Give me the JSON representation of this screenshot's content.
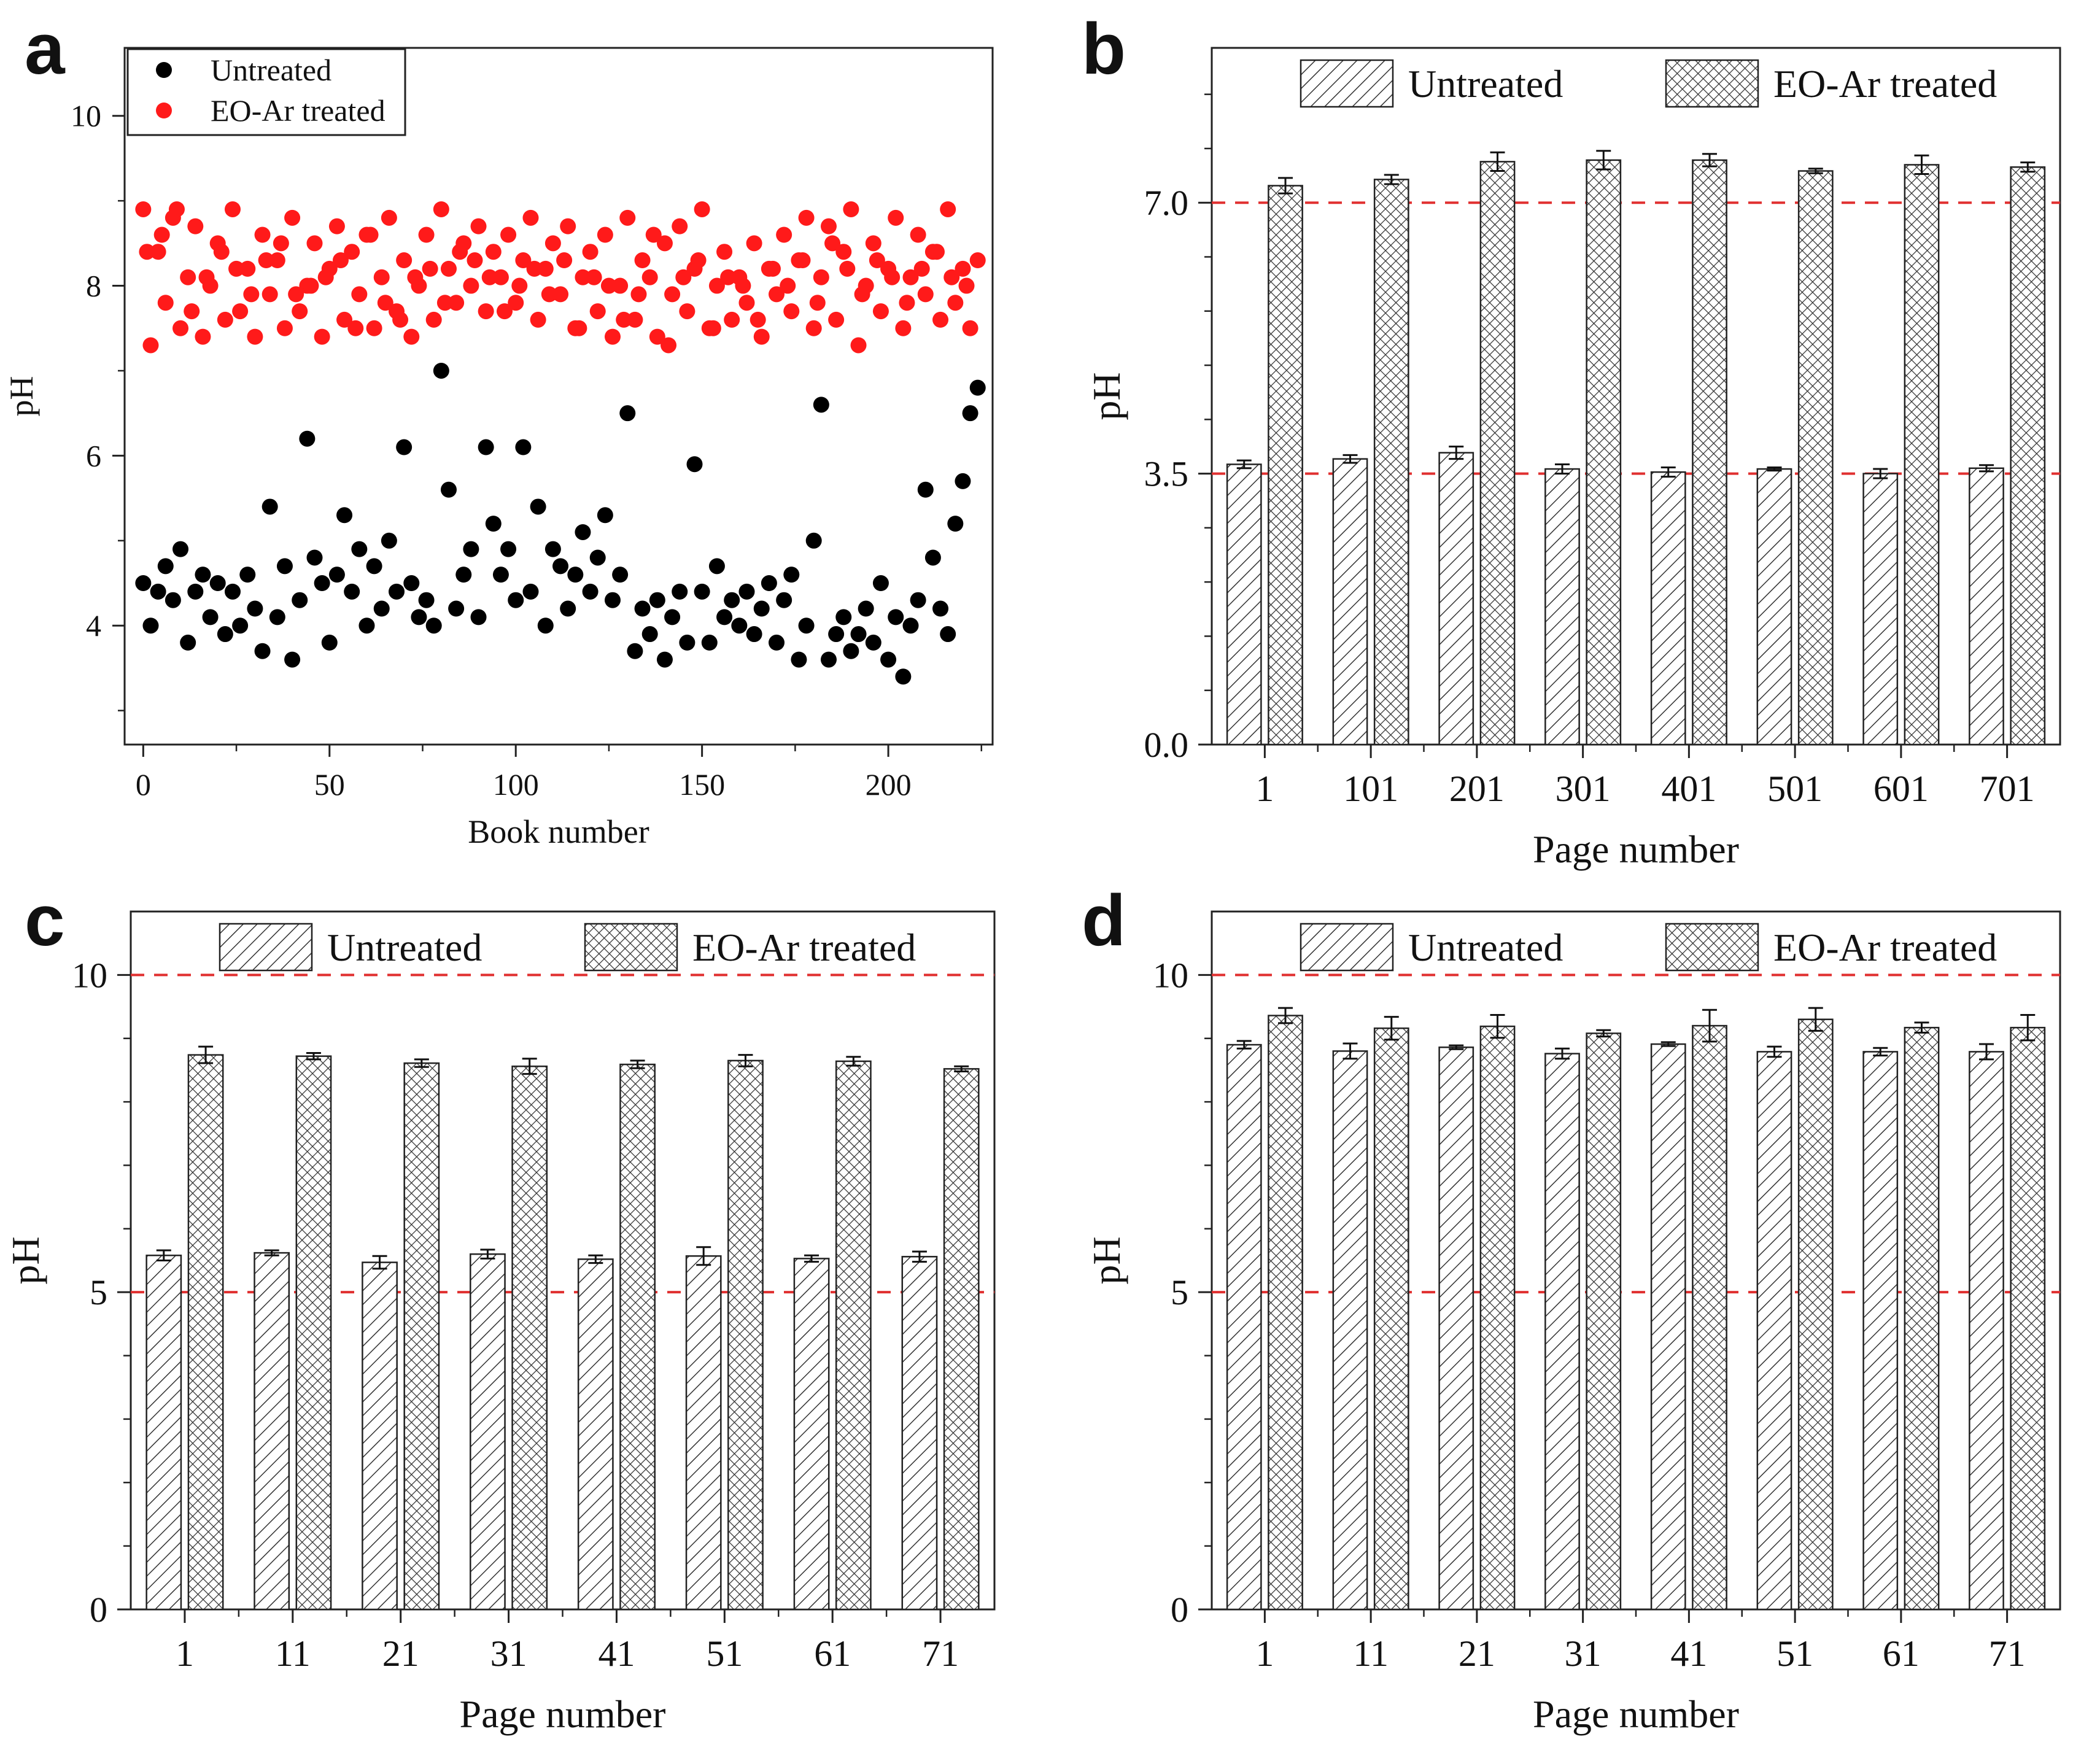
{
  "colors": {
    "untreated_points": "#000000",
    "treated_points": "#ff1a1a",
    "reference_line": "#e03030",
    "axis": "#222222",
    "bar_outline": "#222222"
  },
  "chart_data": [
    {
      "panel": "a",
      "type": "scatter",
      "xlabel": "Book number",
      "ylabel": "pH",
      "xlim": [
        -5,
        228
      ],
      "ylim": [
        2.6,
        10.8
      ],
      "xticks": [
        0,
        50,
        100,
        150,
        200
      ],
      "yticks": [
        4,
        6,
        8,
        10
      ],
      "legend": "top-left",
      "series": [
        {
          "name": "Untreated",
          "color": "#000000",
          "x": [
            0,
            2,
            4,
            6,
            8,
            10,
            12,
            14,
            16,
            18,
            20,
            22,
            24,
            26,
            28,
            30,
            32,
            34,
            36,
            38,
            40,
            42,
            44,
            46,
            48,
            50,
            52,
            54,
            56,
            58,
            60,
            62,
            64,
            66,
            68,
            70,
            72,
            74,
            76,
            78,
            80,
            82,
            84,
            86,
            88,
            90,
            92,
            94,
            96,
            98,
            100,
            102,
            104,
            106,
            108,
            110,
            112,
            114,
            116,
            118,
            120,
            122,
            124,
            126,
            128,
            130,
            132,
            134,
            136,
            138,
            140,
            142,
            144,
            146,
            148,
            150,
            152,
            154,
            156,
            158,
            160,
            162,
            164,
            166,
            168,
            170,
            172,
            174,
            176,
            178,
            180,
            182,
            184,
            186,
            188,
            190,
            192,
            194,
            196,
            198,
            200,
            202,
            204,
            206,
            208,
            210,
            212,
            214,
            216,
            218,
            220,
            222,
            224
          ],
          "y": [
            4.5,
            4.0,
            4.4,
            4.7,
            4.3,
            4.9,
            3.8,
            4.4,
            4.6,
            4.1,
            4.5,
            3.9,
            4.4,
            4.0,
            4.6,
            4.2,
            3.7,
            5.4,
            4.1,
            4.7,
            3.6,
            4.3,
            6.2,
            4.8,
            4.5,
            3.8,
            4.6,
            5.3,
            4.4,
            4.9,
            4.0,
            4.7,
            4.2,
            5.0,
            4.4,
            6.1,
            4.5,
            4.1,
            4.3,
            4.0,
            7.0,
            5.6,
            4.2,
            4.6,
            4.9,
            4.1,
            6.1,
            5.2,
            4.6,
            4.9,
            4.3,
            6.1,
            4.4,
            5.4,
            4.0,
            4.9,
            4.7,
            4.2,
            4.6,
            5.1,
            4.4,
            4.8,
            5.3,
            4.3,
            4.6,
            6.5,
            3.7,
            4.2,
            3.9,
            4.3,
            3.6,
            4.1,
            4.4,
            3.8,
            5.9,
            4.4,
            3.8,
            4.7,
            4.1,
            4.3,
            4.0,
            4.4,
            3.9,
            4.2,
            4.5,
            3.8,
            4.3,
            4.6,
            3.6,
            4.0,
            5.0,
            6.6,
            3.6,
            3.9,
            4.1,
            3.7,
            3.9,
            4.2,
            3.8,
            4.5,
            3.6,
            4.1,
            3.4,
            4.0,
            4.3,
            5.6,
            4.8,
            4.2,
            3.9,
            5.2,
            5.7,
            6.5,
            6.8
          ]
        },
        {
          "name": "EO-Ar treated",
          "color": "#ff1a1a",
          "x": [
            0,
            2,
            4,
            6,
            8,
            10,
            12,
            14,
            16,
            18,
            20,
            22,
            24,
            26,
            28,
            30,
            32,
            34,
            36,
            38,
            40,
            42,
            44,
            46,
            48,
            50,
            52,
            54,
            56,
            58,
            60,
            62,
            64,
            66,
            68,
            70,
            72,
            74,
            76,
            78,
            80,
            82,
            84,
            86,
            88,
            90,
            92,
            94,
            96,
            98,
            100,
            102,
            104,
            106,
            108,
            110,
            112,
            114,
            116,
            118,
            120,
            122,
            124,
            126,
            128,
            130,
            132,
            134,
            136,
            138,
            140,
            142,
            144,
            146,
            148,
            150,
            152,
            154,
            156,
            158,
            160,
            162,
            164,
            166,
            168,
            170,
            172,
            174,
            176,
            178,
            180,
            182,
            184,
            186,
            188,
            190,
            192,
            194,
            196,
            198,
            200,
            202,
            204,
            206,
            208,
            210,
            212,
            214,
            216,
            218,
            220,
            222,
            224,
            1,
            5,
            9,
            13,
            17,
            21,
            25,
            29,
            33,
            37,
            41,
            45,
            49,
            53,
            57,
            61,
            65,
            69,
            73,
            77,
            81,
            85,
            89,
            93,
            97,
            101,
            105,
            109,
            113,
            117,
            121,
            125,
            129,
            133,
            137,
            141,
            145,
            149,
            153,
            157,
            161,
            165,
            169,
            173,
            177,
            181,
            185,
            189,
            193,
            197,
            201,
            205,
            209,
            213,
            217,
            221
          ],
          "y": [
            8.9,
            7.3,
            8.4,
            7.8,
            8.8,
            7.5,
            8.1,
            8.7,
            7.4,
            8.0,
            8.5,
            7.6,
            8.9,
            7.7,
            8.2,
            7.4,
            8.6,
            7.9,
            8.3,
            7.5,
            8.8,
            7.7,
            8.0,
            8.5,
            7.4,
            8.2,
            8.7,
            7.6,
            8.4,
            7.9,
            8.6,
            7.5,
            8.1,
            8.8,
            7.7,
            8.3,
            7.4,
            8.0,
            8.6,
            7.6,
            8.9,
            8.2,
            7.8,
            8.5,
            8.0,
            8.7,
            7.7,
            8.4,
            8.1,
            8.6,
            7.8,
            8.3,
            8.8,
            7.6,
            8.2,
            8.5,
            7.9,
            8.7,
            7.5,
            8.1,
            8.4,
            7.7,
            8.6,
            7.4,
            8.0,
            8.8,
            7.6,
            8.3,
            8.1,
            7.4,
            8.5,
            7.9,
            8.7,
            7.7,
            8.2,
            8.9,
            7.5,
            8.0,
            8.4,
            7.6,
            8.1,
            7.8,
            8.5,
            7.4,
            8.2,
            7.9,
            8.6,
            7.7,
            8.3,
            8.8,
            7.5,
            8.1,
            8.7,
            7.6,
            8.4,
            8.9,
            7.3,
            8.0,
            8.5,
            7.7,
            8.2,
            8.8,
            7.5,
            8.1,
            8.6,
            7.9,
            8.4,
            7.6,
            8.9,
            7.8,
            8.2,
            7.5,
            8.3,
            8.4,
            8.6,
            8.9,
            7.7,
            8.1,
            8.4,
            8.2,
            7.9,
            8.3,
            8.5,
            7.9,
            8.0,
            8.1,
            8.3,
            7.5,
            8.6,
            7.8,
            7.6,
            8.1,
            8.2,
            7.8,
            8.4,
            8.3,
            8.1,
            7.7,
            8.0,
            8.2,
            7.9,
            8.3,
            7.5,
            8.1,
            8.0,
            7.6,
            7.9,
            8.6,
            7.3,
            8.1,
            8.3,
            7.5,
            8.1,
            8.0,
            7.6,
            8.2,
            8.0,
            8.3,
            7.8,
            8.5,
            8.2,
            7.9,
            8.3,
            8.1,
            7.8,
            8.2,
            8.4,
            8.1,
            8.0
          ]
        }
      ]
    },
    {
      "panel": "b",
      "type": "bar",
      "xlabel": "Page number",
      "ylabel": "pH",
      "categories": [
        "1",
        "101",
        "201",
        "301",
        "401",
        "501",
        "601",
        "701"
      ],
      "ylim": [
        0,
        9.0
      ],
      "yticks": [
        0.0,
        3.5,
        7.0
      ],
      "ytick_labels": [
        "0.0",
        "3.5",
        "7.0"
      ],
      "reference_lines": [
        3.5,
        7.0
      ],
      "legend": "top",
      "series": [
        {
          "name": "Untreated",
          "pattern": "hatch",
          "values": [
            3.62,
            3.69,
            3.77,
            3.56,
            3.52,
            3.56,
            3.5,
            3.57
          ],
          "errors": [
            0.05,
            0.05,
            0.08,
            0.06,
            0.06,
            0.02,
            0.06,
            0.04
          ]
        },
        {
          "name": "EO-Ar treated",
          "pattern": "crosshatch",
          "values": [
            7.22,
            7.3,
            7.53,
            7.55,
            7.55,
            7.41,
            7.49,
            7.46
          ],
          "errors": [
            0.1,
            0.06,
            0.12,
            0.12,
            0.08,
            0.03,
            0.12,
            0.06
          ]
        }
      ]
    },
    {
      "panel": "c",
      "type": "bar",
      "xlabel": "Page number",
      "ylabel": "pH",
      "categories": [
        "1",
        "11",
        "21",
        "31",
        "41",
        "51",
        "61",
        "71"
      ],
      "ylim": [
        0,
        11
      ],
      "yticks": [
        0,
        5,
        10
      ],
      "ytick_labels": [
        "0",
        "5",
        "10"
      ],
      "reference_lines": [
        5,
        10
      ],
      "legend": "top",
      "series": [
        {
          "name": "Untreated",
          "pattern": "hatch",
          "values": [
            5.58,
            5.62,
            5.47,
            5.6,
            5.52,
            5.57,
            5.53,
            5.56
          ],
          "errors": [
            0.08,
            0.04,
            0.1,
            0.07,
            0.06,
            0.14,
            0.05,
            0.08
          ]
        },
        {
          "name": "EO-Ar treated",
          "pattern": "crosshatch",
          "values": [
            8.74,
            8.72,
            8.61,
            8.56,
            8.59,
            8.65,
            8.64,
            8.52
          ],
          "errors": [
            0.13,
            0.05,
            0.06,
            0.12,
            0.06,
            0.09,
            0.07,
            0.04
          ]
        }
      ]
    },
    {
      "panel": "d",
      "type": "bar",
      "xlabel": "Page number",
      "ylabel": "pH",
      "categories": [
        "1",
        "11",
        "21",
        "31",
        "41",
        "51",
        "61",
        "71"
      ],
      "ylim": [
        0,
        11
      ],
      "yticks": [
        0,
        5,
        10
      ],
      "ytick_labels": [
        "0",
        "5",
        "10"
      ],
      "reference_lines": [
        5,
        10
      ],
      "legend": "top",
      "series": [
        {
          "name": "Untreated",
          "pattern": "hatch",
          "values": [
            8.9,
            8.8,
            8.86,
            8.76,
            8.91,
            8.79,
            8.79,
            8.79
          ],
          "errors": [
            0.06,
            0.12,
            0.03,
            0.08,
            0.03,
            0.08,
            0.06,
            0.12
          ]
        },
        {
          "name": "EO-Ar treated",
          "pattern": "crosshatch",
          "values": [
            9.36,
            9.16,
            9.19,
            9.08,
            9.2,
            9.3,
            9.17,
            9.17
          ],
          "errors": [
            0.12,
            0.18,
            0.18,
            0.05,
            0.25,
            0.18,
            0.08,
            0.2
          ]
        }
      ]
    }
  ]
}
